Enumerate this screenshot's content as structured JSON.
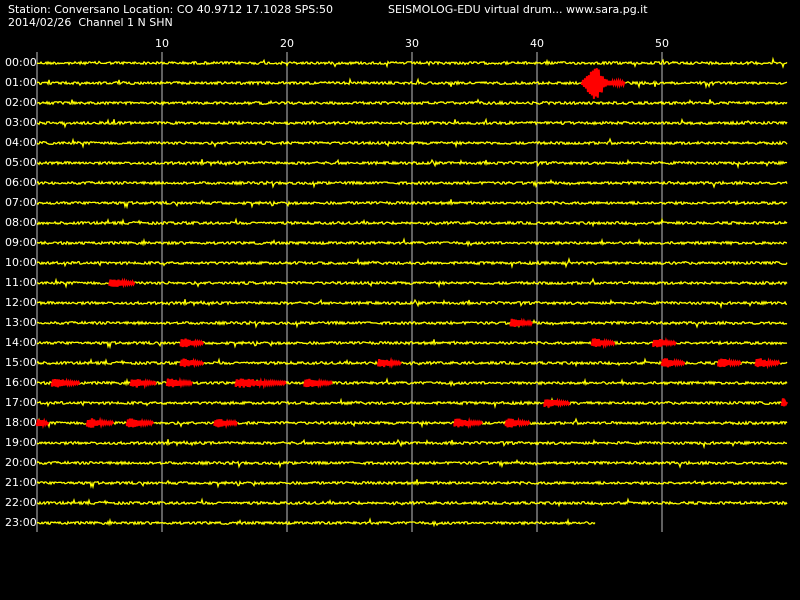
{
  "header": {
    "station_line": "Station: Conversano Location: CO 40.9712 17.1028 SPS:50",
    "date_line": "2014/02/26  Channel 1 N SHN",
    "brand_line": "SEISMOLOG-EDU virtual drum... www.sara.pg.it"
  },
  "colors": {
    "background": "#000000",
    "trace": "#ffff00",
    "event": "#ff0000",
    "grid": "#c0c0c0",
    "text": "#ffffff"
  },
  "chart_data": {
    "type": "line",
    "title": "SEISMOLOG-EDU virtual drum",
    "x_ticks": [
      "10",
      "20",
      "30",
      "40",
      "50"
    ],
    "x_tick_values": [
      10,
      20,
      30,
      40,
      50
    ],
    "xlim": [
      0,
      60
    ],
    "x_unit": "minutes",
    "hours": [
      "00:00",
      "01:00",
      "02:00",
      "03:00",
      "04:00",
      "05:00",
      "06:00",
      "07:00",
      "08:00",
      "09:00",
      "10:00",
      "11:00",
      "12:00",
      "13:00",
      "14:00",
      "15:00",
      "16:00",
      "17:00",
      "18:00",
      "19:00",
      "20:00",
      "21:00",
      "22:00",
      "23:00"
    ],
    "last_hour_end_minute": 44.7,
    "events": [
      {
        "hour": 1,
        "start": 43.6,
        "end": 47.0,
        "amplitude": "large"
      },
      {
        "hour": 11,
        "start": 5.8,
        "end": 7.8,
        "amplitude": "small"
      },
      {
        "hour": 13,
        "start": 37.9,
        "end": 39.6,
        "amplitude": "small"
      },
      {
        "hour": 14,
        "start": 11.5,
        "end": 13.3,
        "amplitude": "small"
      },
      {
        "hour": 14,
        "start": 44.4,
        "end": 46.2,
        "amplitude": "small"
      },
      {
        "hour": 14,
        "start": 49.3,
        "end": 51.1,
        "amplitude": "small"
      },
      {
        "hour": 15,
        "start": 11.5,
        "end": 13.3,
        "amplitude": "small"
      },
      {
        "hour": 15,
        "start": 27.3,
        "end": 29.1,
        "amplitude": "small"
      },
      {
        "hour": 15,
        "start": 50.0,
        "end": 51.8,
        "amplitude": "small"
      },
      {
        "hour": 15,
        "start": 54.5,
        "end": 56.3,
        "amplitude": "small"
      },
      {
        "hour": 15,
        "start": 57.5,
        "end": 59.4,
        "amplitude": "small"
      },
      {
        "hour": 16,
        "start": 1.2,
        "end": 3.4,
        "amplitude": "small"
      },
      {
        "hour": 16,
        "start": 7.5,
        "end": 9.5,
        "amplitude": "small"
      },
      {
        "hour": 16,
        "start": 10.4,
        "end": 12.4,
        "amplitude": "small"
      },
      {
        "hour": 16,
        "start": 15.9,
        "end": 19.9,
        "amplitude": "small"
      },
      {
        "hour": 16,
        "start": 21.4,
        "end": 23.6,
        "amplitude": "small"
      },
      {
        "hour": 17,
        "start": 40.6,
        "end": 42.6,
        "amplitude": "small"
      },
      {
        "hour": 17,
        "start": 59.6,
        "end": 60.0,
        "amplitude": "small"
      },
      {
        "hour": 18,
        "start": 0.0,
        "end": 0.9,
        "amplitude": "small"
      },
      {
        "hour": 18,
        "start": 4.0,
        "end": 6.1,
        "amplitude": "small"
      },
      {
        "hour": 18,
        "start": 7.2,
        "end": 9.3,
        "amplitude": "small"
      },
      {
        "hour": 18,
        "start": 14.2,
        "end": 16.0,
        "amplitude": "small"
      },
      {
        "hour": 18,
        "start": 33.4,
        "end": 35.6,
        "amplitude": "small"
      },
      {
        "hour": 18,
        "start": 37.5,
        "end": 39.4,
        "amplitude": "small"
      }
    ]
  }
}
